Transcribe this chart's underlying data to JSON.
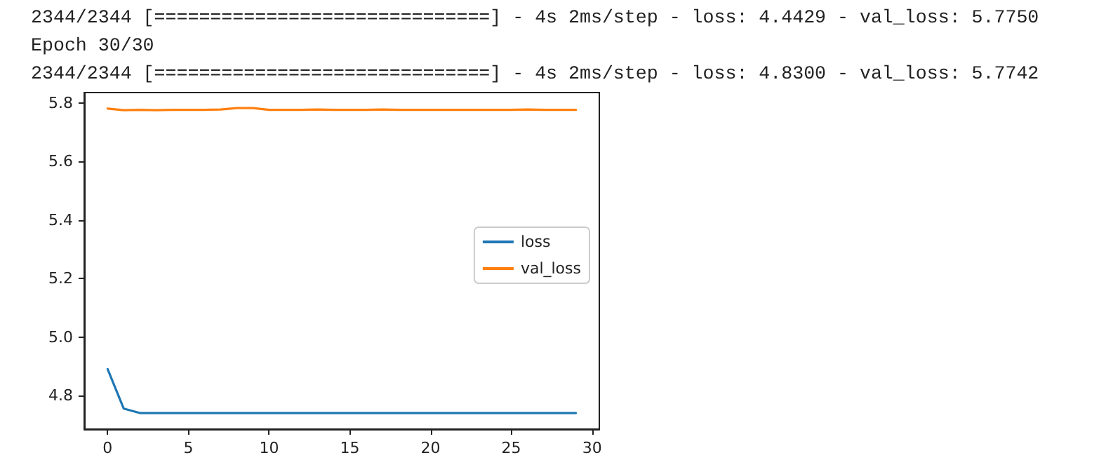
{
  "chart_data": {
    "type": "line",
    "annotations": [
      "2344/2344 [==============================] - 4s 2ms/step - loss: 4.4429 - val_loss: 5.7750",
      "Epoch 30/30",
      "2344/2344 [==============================] - 4s 2ms/step - loss: 4.8300 - val_loss: 5.7742"
    ],
    "x": [
      0,
      1,
      2,
      3,
      4,
      5,
      6,
      7,
      8,
      9,
      10,
      11,
      12,
      13,
      14,
      15,
      16,
      17,
      18,
      19,
      20,
      21,
      22,
      23,
      24,
      25,
      26,
      27,
      28,
      29
    ],
    "series": [
      {
        "name": "loss",
        "color": "#1f77b4",
        "values": [
          4.89,
          4.755,
          4.74,
          4.74,
          4.74,
          4.74,
          4.74,
          4.74,
          4.74,
          4.74,
          4.74,
          4.74,
          4.74,
          4.74,
          4.74,
          4.74,
          4.74,
          4.74,
          4.74,
          4.74,
          4.74,
          4.74,
          4.74,
          4.74,
          4.74,
          4.74,
          4.74,
          4.74,
          4.74,
          4.74
        ]
      },
      {
        "name": "val_loss",
        "color": "#ff7f0e",
        "values": [
          5.78,
          5.775,
          5.776,
          5.775,
          5.776,
          5.776,
          5.776,
          5.777,
          5.782,
          5.782,
          5.776,
          5.776,
          5.776,
          5.777,
          5.776,
          5.776,
          5.776,
          5.777,
          5.776,
          5.776,
          5.776,
          5.776,
          5.776,
          5.776,
          5.776,
          5.776,
          5.777,
          5.776,
          5.776,
          5.776
        ]
      }
    ],
    "xlim": [
      -1.45,
      30.45
    ],
    "xticks": [
      0,
      5,
      10,
      15,
      20,
      25,
      30
    ],
    "ylim": [
      4.685,
      5.835
    ],
    "yticks": [
      {
        "value": 4.8,
        "label": "4.8"
      },
      {
        "value": 5.0,
        "label": "5.0"
      },
      {
        "value": 5.2,
        "label": "5.2"
      },
      {
        "value": 5.4,
        "label": "5.4"
      },
      {
        "value": 5.6,
        "label": "5.6"
      },
      {
        "value": 5.8,
        "label": "5.8"
      }
    ],
    "legend": "right",
    "grid": false,
    "marker": "none",
    "line_style": "solid"
  }
}
